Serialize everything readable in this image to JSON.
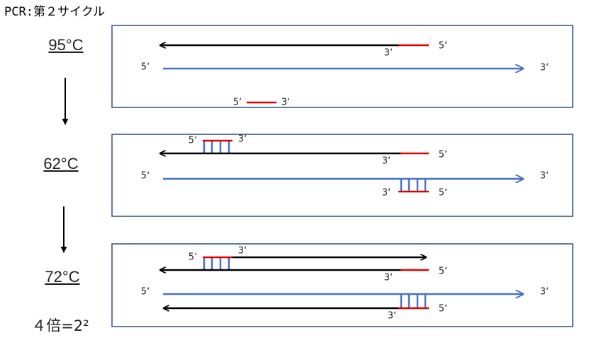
{
  "title": "PCR:第２サイクル",
  "steps": [
    {
      "temp": "95°C"
    },
    {
      "temp": "62°C"
    },
    {
      "temp": "72°C"
    }
  ],
  "result": "４倍=2²",
  "panels": [
    {
      "labels": [
        "5‘",
        "3‘",
        "5‘",
        "3‘",
        "5‘",
        "3‘"
      ]
    },
    {
      "labels": [
        "5‘",
        "3‘",
        "5‘",
        "3‘",
        "5‘",
        "3‘",
        "3‘",
        "5‘"
      ]
    },
    {
      "labels": [
        "5‘",
        "3‘",
        "5‘",
        "3‘",
        "5‘",
        "3‘",
        "3‘",
        "5‘"
      ]
    }
  ]
}
